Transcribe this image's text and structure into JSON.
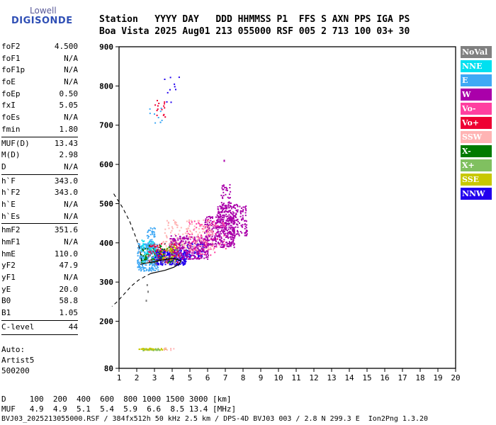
{
  "logo": {
    "line1": "Lowell",
    "line2": "DIGISONDE"
  },
  "header": {
    "line1": "Station   YYYY DAY   DDD HHMMSS P1  FFS S AXN PPS IGA PS",
    "line2": "Boa Vista 2025 Aug01 213 055000 RSF 005 2 713 100 03+ 30"
  },
  "params": [
    {
      "label": "foF2",
      "value": "4.500"
    },
    {
      "label": "foF1",
      "value": "N/A"
    },
    {
      "label": "foF1p",
      "value": "N/A"
    },
    {
      "label": "foE",
      "value": "N/A"
    },
    {
      "label": "foEp",
      "value": "0.50"
    },
    {
      "label": "fxI",
      "value": "5.05"
    },
    {
      "label": "foEs",
      "value": "N/A"
    },
    {
      "label": "fmin",
      "value": "1.80",
      "sep": true
    },
    {
      "label": "MUF(D)",
      "value": "13.43"
    },
    {
      "label": "M(D)",
      "value": "2.98"
    },
    {
      "label": "D",
      "value": "N/A",
      "sep": true
    },
    {
      "label": "h`F",
      "value": "343.0"
    },
    {
      "label": "h`F2",
      "value": "343.0"
    },
    {
      "label": "h`E",
      "value": "N/A"
    },
    {
      "label": "h`Es",
      "value": "N/A",
      "sep": true
    },
    {
      "label": "hmF2",
      "value": "351.6"
    },
    {
      "label": "hmF1",
      "value": "N/A"
    },
    {
      "label": "hmE",
      "value": "110.0"
    },
    {
      "label": "yF2",
      "value": "47.9"
    },
    {
      "label": "yF1",
      "value": "N/A"
    },
    {
      "label": "yE",
      "value": "20.0"
    },
    {
      "label": "B0",
      "value": "58.8"
    },
    {
      "label": "B1",
      "value": "1.05",
      "sep": true
    },
    {
      "label": "C-level",
      "value": "44",
      "sep": true
    }
  ],
  "auto": {
    "line1": "Auto:",
    "line2": "Artist5",
    "line3": "500200"
  },
  "legend": [
    {
      "label": "NoVal",
      "bg": "#808080",
      "fg": "#ffffff"
    },
    {
      "label": "NNE",
      "bg": "#00e0f0",
      "fg": "#ffffff"
    },
    {
      "label": "E",
      "bg": "#3fa9f5",
      "fg": "#ffffff"
    },
    {
      "label": "W",
      "bg": "#aa00aa",
      "fg": "#ffffff"
    },
    {
      "label": "Vo-",
      "bg": "#ff3fa0",
      "fg": "#ffffff"
    },
    {
      "label": "Vo+",
      "bg": "#ee0033",
      "fg": "#ffffff"
    },
    {
      "label": "SSW",
      "bg": "#ffb4b4",
      "fg": "#ffffff"
    },
    {
      "label": "X-",
      "bg": "#007a00",
      "fg": "#ffffff"
    },
    {
      "label": "X+",
      "bg": "#80c060",
      "fg": "#ffffff"
    },
    {
      "label": "SSE",
      "bg": "#c8c800",
      "fg": "#ffffff"
    },
    {
      "label": "NNW",
      "bg": "#2200ee",
      "fg": "#ffffff"
    }
  ],
  "table": {
    "row1": "D     100  200  400  600  800 1000 1500 3000 [km]",
    "row2": "MUF   4.9  4.9  5.1  5.4  5.9  6.6  8.5 13.4 [MHz]"
  },
  "footer": "BVJ03_2025213055000.RSF / 384fx512h 50 kHz 2.5 km / DPS-4D BVJ03 003 / 2.8 N 299.3 E  Ion2Png 1.3.20",
  "chart_data": {
    "type": "scatter",
    "xlim": [
      1,
      20
    ],
    "ylim": [
      80,
      900
    ],
    "xticks": [
      "1",
      "2",
      "3",
      "4",
      "5",
      "6",
      "7",
      "8",
      "9",
      "10",
      "11",
      "12",
      "13",
      "14",
      "15",
      "16",
      "17",
      "18",
      "19",
      "20"
    ],
    "yticks": [
      "80",
      "200",
      "300",
      "400",
      "500",
      "600",
      "700",
      "800",
      "900"
    ],
    "grid": false,
    "legend_position": "right",
    "profile": {
      "solid": [
        [
          2.2,
          345
        ],
        [
          2.6,
          349
        ],
        [
          3.0,
          352
        ],
        [
          3.4,
          356
        ],
        [
          3.7,
          358
        ],
        [
          4.0,
          360
        ],
        [
          4.3,
          358
        ],
        [
          4.5,
          354
        ],
        [
          4.4,
          346
        ],
        [
          4.1,
          338
        ],
        [
          3.6,
          330
        ],
        [
          3.2,
          326
        ],
        [
          2.8,
          322
        ]
      ],
      "dashed_upper": [
        [
          0.7,
          525
        ],
        [
          1.2,
          490
        ],
        [
          1.6,
          455
        ],
        [
          1.9,
          420
        ],
        [
          2.1,
          395
        ],
        [
          2.2,
          375
        ],
        [
          2.25,
          360
        ],
        [
          2.25,
          350
        ]
      ],
      "dashed_lower": [
        [
          2.8,
          322
        ],
        [
          2.5,
          315
        ],
        [
          2.1,
          305
        ],
        [
          1.7,
          290
        ],
        [
          1.3,
          270
        ],
        [
          0.9,
          250
        ],
        [
          0.6,
          238
        ]
      ]
    },
    "clusters": [
      {
        "series": "E",
        "x": [
          2.0,
          3.2
        ],
        "y": [
          330,
          400
        ],
        "n": 260
      },
      {
        "series": "E",
        "x": [
          2.5,
          3.0
        ],
        "y": [
          380,
          440
        ],
        "n": 50
      },
      {
        "series": "NNW",
        "x": [
          3.0,
          4.8
        ],
        "y": [
          345,
          385
        ],
        "n": 300
      },
      {
        "series": "NNW",
        "x": [
          4.8,
          5.8
        ],
        "y": [
          365,
          400
        ],
        "n": 60
      },
      {
        "series": "W",
        "x": [
          3.8,
          6.0
        ],
        "y": [
          360,
          420
        ],
        "n": 320
      },
      {
        "series": "W",
        "x": [
          5.8,
          7.5
        ],
        "y": [
          390,
          470
        ],
        "n": 320
      },
      {
        "series": "W",
        "x": [
          6.5,
          8.2
        ],
        "y": [
          420,
          500
        ],
        "n": 220
      },
      {
        "series": "W",
        "x": [
          6.7,
          7.3
        ],
        "y": [
          480,
          550
        ],
        "n": 50
      },
      {
        "series": "Vo-",
        "x": [
          4.8,
          7.0
        ],
        "y": [
          370,
          460
        ],
        "n": 90
      },
      {
        "series": "SSW",
        "x": [
          3.4,
          6.3
        ],
        "y": [
          380,
          460
        ],
        "n": 150
      },
      {
        "series": "Vo+",
        "x": [
          2.6,
          4.4
        ],
        "y": [
          350,
          400
        ],
        "n": 90
      },
      {
        "series": "X-",
        "x": [
          2.2,
          4.0
        ],
        "y": [
          350,
          395
        ],
        "n": 60
      },
      {
        "series": "SSE",
        "x": [
          3.4,
          4.2
        ],
        "y": [
          355,
          395
        ],
        "n": 30
      },
      {
        "series": "NNE",
        "x": [
          2.2,
          3.0
        ],
        "y": [
          350,
          410
        ],
        "n": 40
      },
      {
        "series": "NoVal",
        "x": [
          2.6,
          4.5
        ],
        "y": [
          345,
          400
        ],
        "n": 50
      },
      {
        "series": "Vo+",
        "x": [
          3.0,
          3.6
        ],
        "y": [
          720,
          770
        ],
        "n": 15
      },
      {
        "series": "E",
        "x": [
          2.7,
          3.4
        ],
        "y": [
          705,
          760
        ],
        "n": 10
      },
      {
        "series": "NNW",
        "x": [
          3.5,
          4.4
        ],
        "y": [
          755,
          825
        ],
        "n": 10
      },
      {
        "series": "SSE",
        "x": [
          2.1,
          3.6
        ],
        "y": [
          128,
          133
        ],
        "n": 45
      },
      {
        "series": "X+",
        "x": [
          2.3,
          3.3
        ],
        "y": [
          127,
          132
        ],
        "n": 12
      },
      {
        "series": "SSW",
        "x": [
          3.4,
          4.2
        ],
        "y": [
          128,
          134
        ],
        "n": 8
      }
    ],
    "outliers": [
      {
        "series": "W",
        "x": 6.9,
        "y": 612
      },
      {
        "series": "NoVal",
        "x": 2.5,
        "y": 255
      },
      {
        "series": "NoVal",
        "x": 2.6,
        "y": 278
      },
      {
        "series": "NoVal",
        "x": 2.55,
        "y": 295
      }
    ]
  }
}
